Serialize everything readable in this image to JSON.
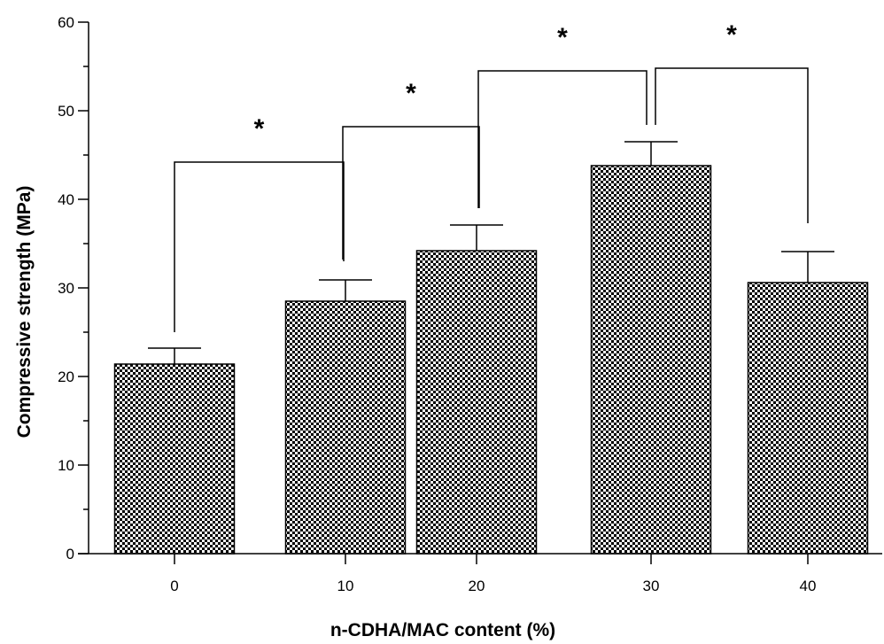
{
  "chart_data": {
    "type": "bar",
    "title": "",
    "xlabel": "n-CDHA/MAC content (%)",
    "ylabel": "Compressive strength (MPa)",
    "categories": [
      "0",
      "10",
      "20",
      "30",
      "40"
    ],
    "values": [
      21.4,
      28.5,
      34.2,
      43.8,
      30.6
    ],
    "errors": [
      1.8,
      2.4,
      2.9,
      2.7,
      3.5
    ],
    "ylim": [
      0,
      60
    ],
    "yticks": [
      "0",
      "10",
      "20",
      "30",
      "40",
      "50",
      "60"
    ],
    "grid": false,
    "legend": "none",
    "bar_pattern": "checkerboard",
    "colors": {
      "pattern_dark": "#000000",
      "pattern_light": "#ffffff",
      "axis": "#000000"
    },
    "significance": [
      {
        "from": 0,
        "to": 1,
        "bracket_y": 44.2,
        "left_end": 25.0,
        "right_end": 33.0,
        "label": "*"
      },
      {
        "from": 1,
        "to": 2,
        "bracket_y": 48.2,
        "left_end": 33.2,
        "right_end": 39.0,
        "label": "*"
      },
      {
        "from": 2,
        "to": 3,
        "bracket_y": 54.5,
        "left_end": 39.0,
        "right_end": 48.4,
        "label": "*"
      },
      {
        "from": 3,
        "to": 4,
        "bracket_y": 54.8,
        "left_end": 48.4,
        "right_end": 37.3,
        "label": "*"
      }
    ]
  }
}
